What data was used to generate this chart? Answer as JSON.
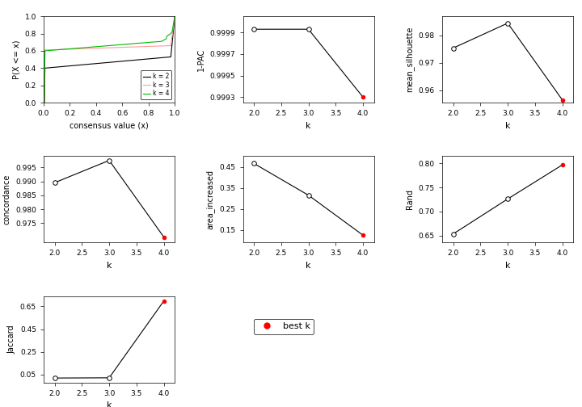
{
  "ecdf": {
    "xlabel": "consensus value (x)",
    "ylabel": "P(X <= x)",
    "xlim": [
      0.0,
      1.0
    ],
    "ylim": [
      0.0,
      1.0
    ],
    "k2_color": "#000000",
    "k3_color": "#FF9999",
    "k4_color": "#00BB00"
  },
  "pac": {
    "k": [
      2,
      3,
      4
    ],
    "values": [
      0.99993,
      0.99993,
      0.9993
    ],
    "best_k": 4,
    "ylabel": "1-PAC",
    "xlabel": "k",
    "yticks": [
      0.9993,
      0.9995,
      0.9997,
      0.9999
    ],
    "ylim": [
      0.99925,
      1.00005
    ]
  },
  "silhouette": {
    "k": [
      2,
      3,
      4
    ],
    "values": [
      0.9754,
      0.9845,
      0.9565
    ],
    "best_k": 4,
    "ylabel": "mean_silhouette",
    "xlabel": "k",
    "yticks": [
      0.96,
      0.97,
      0.98
    ],
    "ylim": [
      0.9555,
      0.987
    ]
  },
  "concordance": {
    "k": [
      2,
      3,
      4
    ],
    "values": [
      0.9895,
      0.9975,
      0.97
    ],
    "best_k": 4,
    "ylabel": "concordance",
    "xlabel": "k",
    "yticks": [
      0.975,
      0.98,
      0.985,
      0.99,
      0.995
    ],
    "ylim": [
      0.968,
      0.999
    ]
  },
  "area_increased": {
    "k": [
      2,
      3,
      4
    ],
    "values": [
      0.466,
      0.315,
      0.125
    ],
    "best_k": 4,
    "ylabel": "area_increased",
    "xlabel": "k",
    "yticks": [
      0.15,
      0.25,
      0.35,
      0.45
    ],
    "ylim": [
      0.09,
      0.5
    ]
  },
  "rand": {
    "k": [
      2,
      3,
      4
    ],
    "values": [
      0.653,
      0.726,
      0.797
    ],
    "best_k": 4,
    "ylabel": "Rand",
    "xlabel": "k",
    "yticks": [
      0.65,
      0.7,
      0.75,
      0.8
    ],
    "ylim": [
      0.635,
      0.815
    ]
  },
  "jaccard": {
    "k": [
      2,
      3,
      4
    ],
    "values": [
      0.02,
      0.022,
      0.698
    ],
    "best_k": 4,
    "ylabel": "Jaccard",
    "xlabel": "k",
    "yticks": [
      0.05,
      0.25,
      0.45,
      0.65
    ],
    "ylim": [
      -0.02,
      0.74
    ]
  },
  "legend_text": "best k",
  "best_k_color": "#FF0000",
  "line_color": "#000000"
}
